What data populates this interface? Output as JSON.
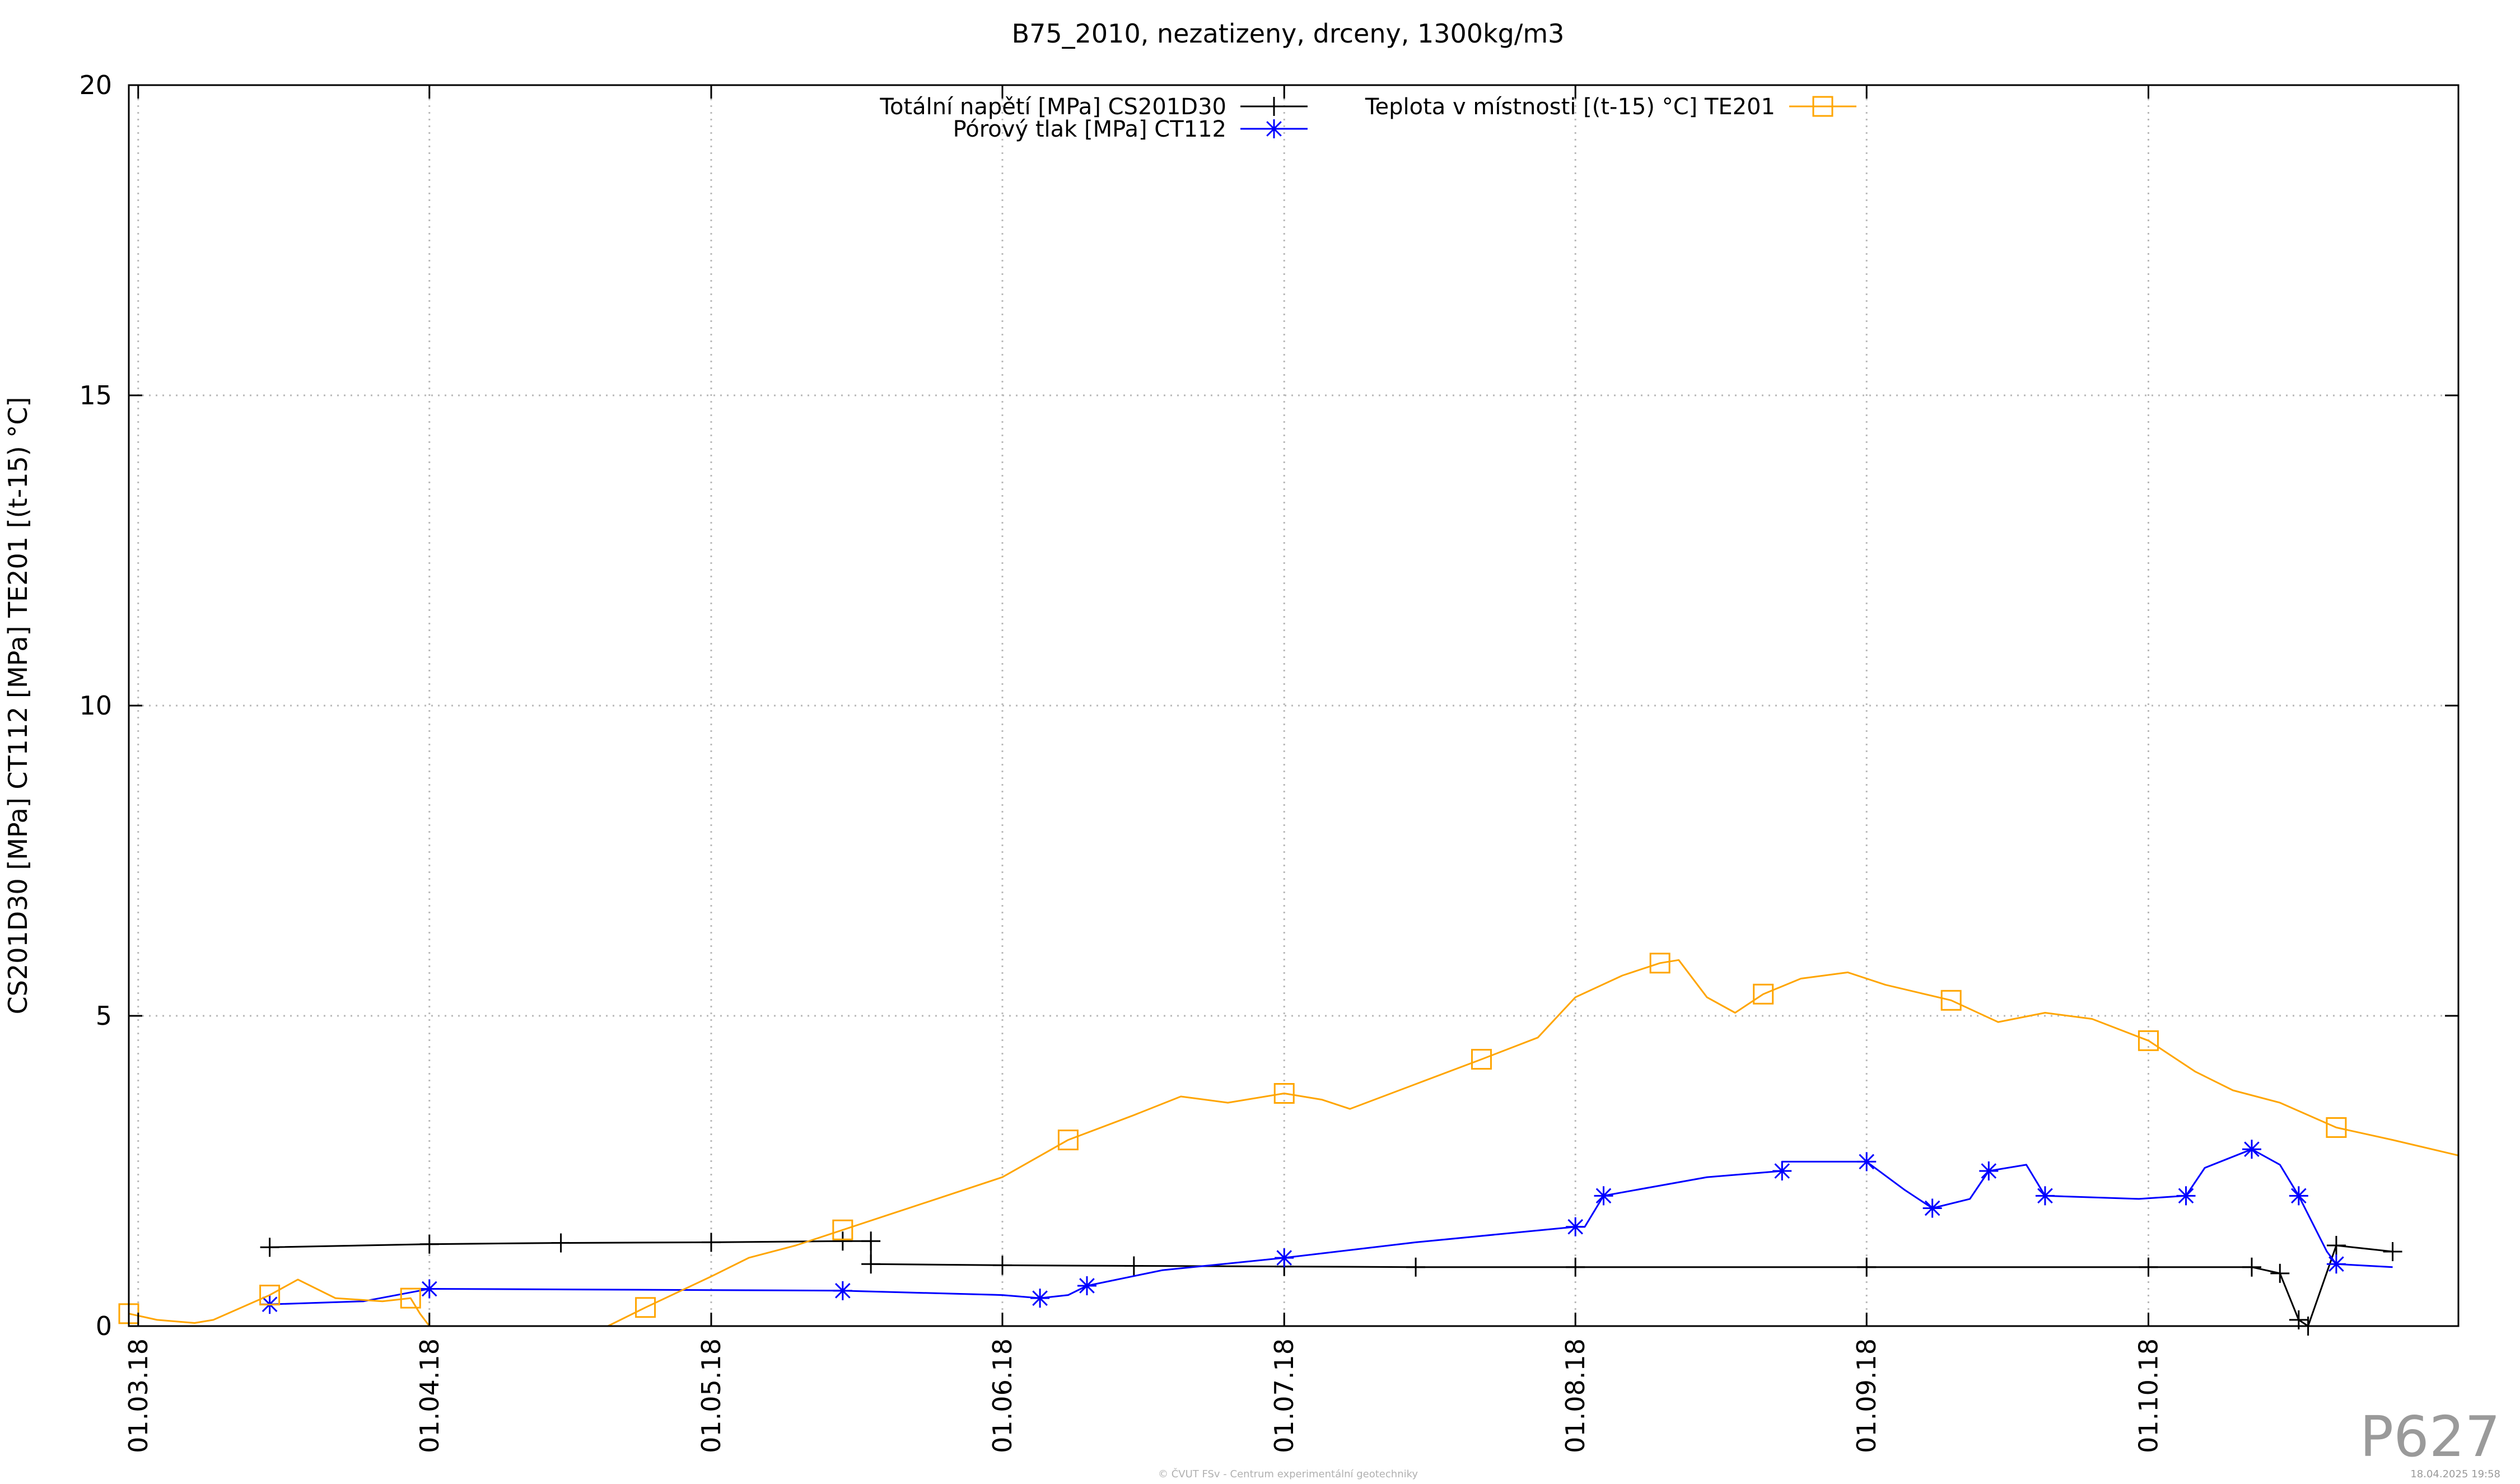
{
  "chart_data": {
    "type": "line",
    "title": "B75_2010, nezatizeny, drceny, 1300kg/m3",
    "xlabel": "",
    "ylabel": "CS201D30 [MPa] CT112 [MPa] TE201 [(t-15) °C]",
    "x_axis_type": "date",
    "xlim": [
      "2018-02-28",
      "2018-11-03"
    ],
    "ylim": [
      0,
      20
    ],
    "yticks": [
      0,
      5,
      10,
      15,
      20
    ],
    "xtick_labels": [
      "01.03.18",
      "01.04.18",
      "01.05.18",
      "01.06.18",
      "01.07.18",
      "01.08.18",
      "01.09.18",
      "01.10.18"
    ],
    "xtick_dates": [
      "2018-03-01",
      "2018-04-01",
      "2018-05-01",
      "2018-06-01",
      "2018-07-01",
      "2018-08-01",
      "2018-09-01",
      "2018-10-01"
    ],
    "grid": true,
    "legend_placement": "top",
    "series": [
      {
        "name": "Totální napětí [MPa] CS201D30",
        "color": "#000000",
        "marker": "plus",
        "points": [
          [
            "2018-03-15",
            1.27
          ],
          [
            "2018-04-01",
            1.32
          ],
          [
            "2018-04-15",
            1.34
          ],
          [
            "2018-05-01",
            1.35
          ],
          [
            "2018-05-15",
            1.37
          ],
          [
            "2018-05-18",
            1.37
          ],
          [
            "2018-05-18",
            1.0
          ],
          [
            "2018-06-01",
            0.98
          ],
          [
            "2018-06-15",
            0.97
          ],
          [
            "2018-07-01",
            0.96
          ],
          [
            "2018-07-15",
            0.95
          ],
          [
            "2018-08-01",
            0.95
          ],
          [
            "2018-09-01",
            0.95
          ],
          [
            "2018-10-01",
            0.95
          ],
          [
            "2018-10-12",
            0.95
          ],
          [
            "2018-10-15",
            0.85
          ],
          [
            "2018-10-17",
            0.1
          ],
          [
            "2018-10-18",
            0
          ],
          [
            "2018-10-21",
            1.3
          ],
          [
            "2018-10-27",
            1.2
          ]
        ]
      },
      {
        "name": "Pórový tlak [MPa] CT112",
        "color": "#0000ff",
        "marker": "star",
        "points": [
          [
            "2018-03-15",
            0.35
          ],
          [
            "2018-03-25",
            0.4
          ],
          [
            "2018-04-01",
            0.6
          ],
          [
            "2018-05-01",
            0.58
          ],
          [
            "2018-05-15",
            0.57
          ],
          [
            "2018-06-01",
            0.5
          ],
          [
            "2018-06-05",
            0.45
          ],
          [
            "2018-06-08",
            0.5
          ],
          [
            "2018-06-10",
            0.65
          ],
          [
            "2018-06-18",
            0.9
          ],
          [
            "2018-07-01",
            1.1
          ],
          [
            "2018-07-15",
            1.35
          ],
          [
            "2018-08-01",
            1.6
          ],
          [
            "2018-08-02",
            1.6
          ],
          [
            "2018-08-04",
            2.1
          ],
          [
            "2018-08-15",
            2.4
          ],
          [
            "2018-08-23",
            2.5
          ],
          [
            "2018-08-23",
            2.65
          ],
          [
            "2018-09-01",
            2.65
          ],
          [
            "2018-09-05",
            2.2
          ],
          [
            "2018-09-08",
            1.9
          ],
          [
            "2018-09-12",
            2.05
          ],
          [
            "2018-09-14",
            2.5
          ],
          [
            "2018-09-18",
            2.6
          ],
          [
            "2018-09-20",
            2.1
          ],
          [
            "2018-09-30",
            2.05
          ],
          [
            "2018-10-05",
            2.1
          ],
          [
            "2018-10-07",
            2.55
          ],
          [
            "2018-10-12",
            2.85
          ],
          [
            "2018-10-15",
            2.6
          ],
          [
            "2018-10-17",
            2.1
          ],
          [
            "2018-10-20",
            1.2
          ],
          [
            "2018-10-21",
            1.0
          ],
          [
            "2018-10-27",
            0.95
          ]
        ]
      },
      {
        "name": "Teplota v místnosti [(t-15) °C] TE201",
        "color": "#ffa500",
        "marker": "square",
        "points": [
          [
            "2018-02-28",
            0.2
          ],
          [
            "2018-03-03",
            0.1
          ],
          [
            "2018-03-07",
            0.05
          ],
          [
            "2018-03-09",
            0.1
          ],
          [
            "2018-03-15",
            0.5
          ],
          [
            "2018-03-18",
            0.75
          ],
          [
            "2018-03-22",
            0.45
          ],
          [
            "2018-03-27",
            0.4
          ],
          [
            "2018-03-30",
            0.45
          ],
          [
            "2018-03-31",
            0.2
          ],
          [
            "2018-04-01",
            0
          ],
          [
            "2018-04-20",
            0
          ],
          [
            "2018-04-24",
            0.3
          ],
          [
            "2018-05-01",
            0.8
          ],
          [
            "2018-05-05",
            1.1
          ],
          [
            "2018-05-10",
            1.3
          ],
          [
            "2018-05-15",
            1.55
          ],
          [
            "2018-05-20",
            1.8
          ],
          [
            "2018-05-25",
            2.05
          ],
          [
            "2018-06-01",
            2.4
          ],
          [
            "2018-06-08",
            3.0
          ],
          [
            "2018-06-15",
            3.4
          ],
          [
            "2018-06-20",
            3.7
          ],
          [
            "2018-06-25",
            3.6
          ],
          [
            "2018-07-01",
            3.75
          ],
          [
            "2018-07-05",
            3.65
          ],
          [
            "2018-07-08",
            3.5
          ],
          [
            "2018-07-15",
            3.9
          ],
          [
            "2018-07-22",
            4.3
          ],
          [
            "2018-07-28",
            4.65
          ],
          [
            "2018-08-01",
            5.3
          ],
          [
            "2018-08-06",
            5.65
          ],
          [
            "2018-08-10",
            5.85
          ],
          [
            "2018-08-12",
            5.9
          ],
          [
            "2018-08-15",
            5.3
          ],
          [
            "2018-08-18",
            5.05
          ],
          [
            "2018-08-21",
            5.35
          ],
          [
            "2018-08-25",
            5.6
          ],
          [
            "2018-08-30",
            5.7
          ],
          [
            "2018-09-03",
            5.5
          ],
          [
            "2018-09-10",
            5.25
          ],
          [
            "2018-09-15",
            4.9
          ],
          [
            "2018-09-20",
            5.05
          ],
          [
            "2018-09-25",
            4.95
          ],
          [
            "2018-10-01",
            4.6
          ],
          [
            "2018-10-06",
            4.1
          ],
          [
            "2018-10-10",
            3.8
          ],
          [
            "2018-10-15",
            3.6
          ],
          [
            "2018-10-21",
            3.2
          ],
          [
            "2018-10-27",
            3.0
          ],
          [
            "2018-11-03",
            2.75
          ]
        ]
      }
    ],
    "annotations": [
      "P627",
      "© ČVUT FSv - Centrum experimentální geotechniky",
      "18.04.2025 19:58"
    ]
  }
}
